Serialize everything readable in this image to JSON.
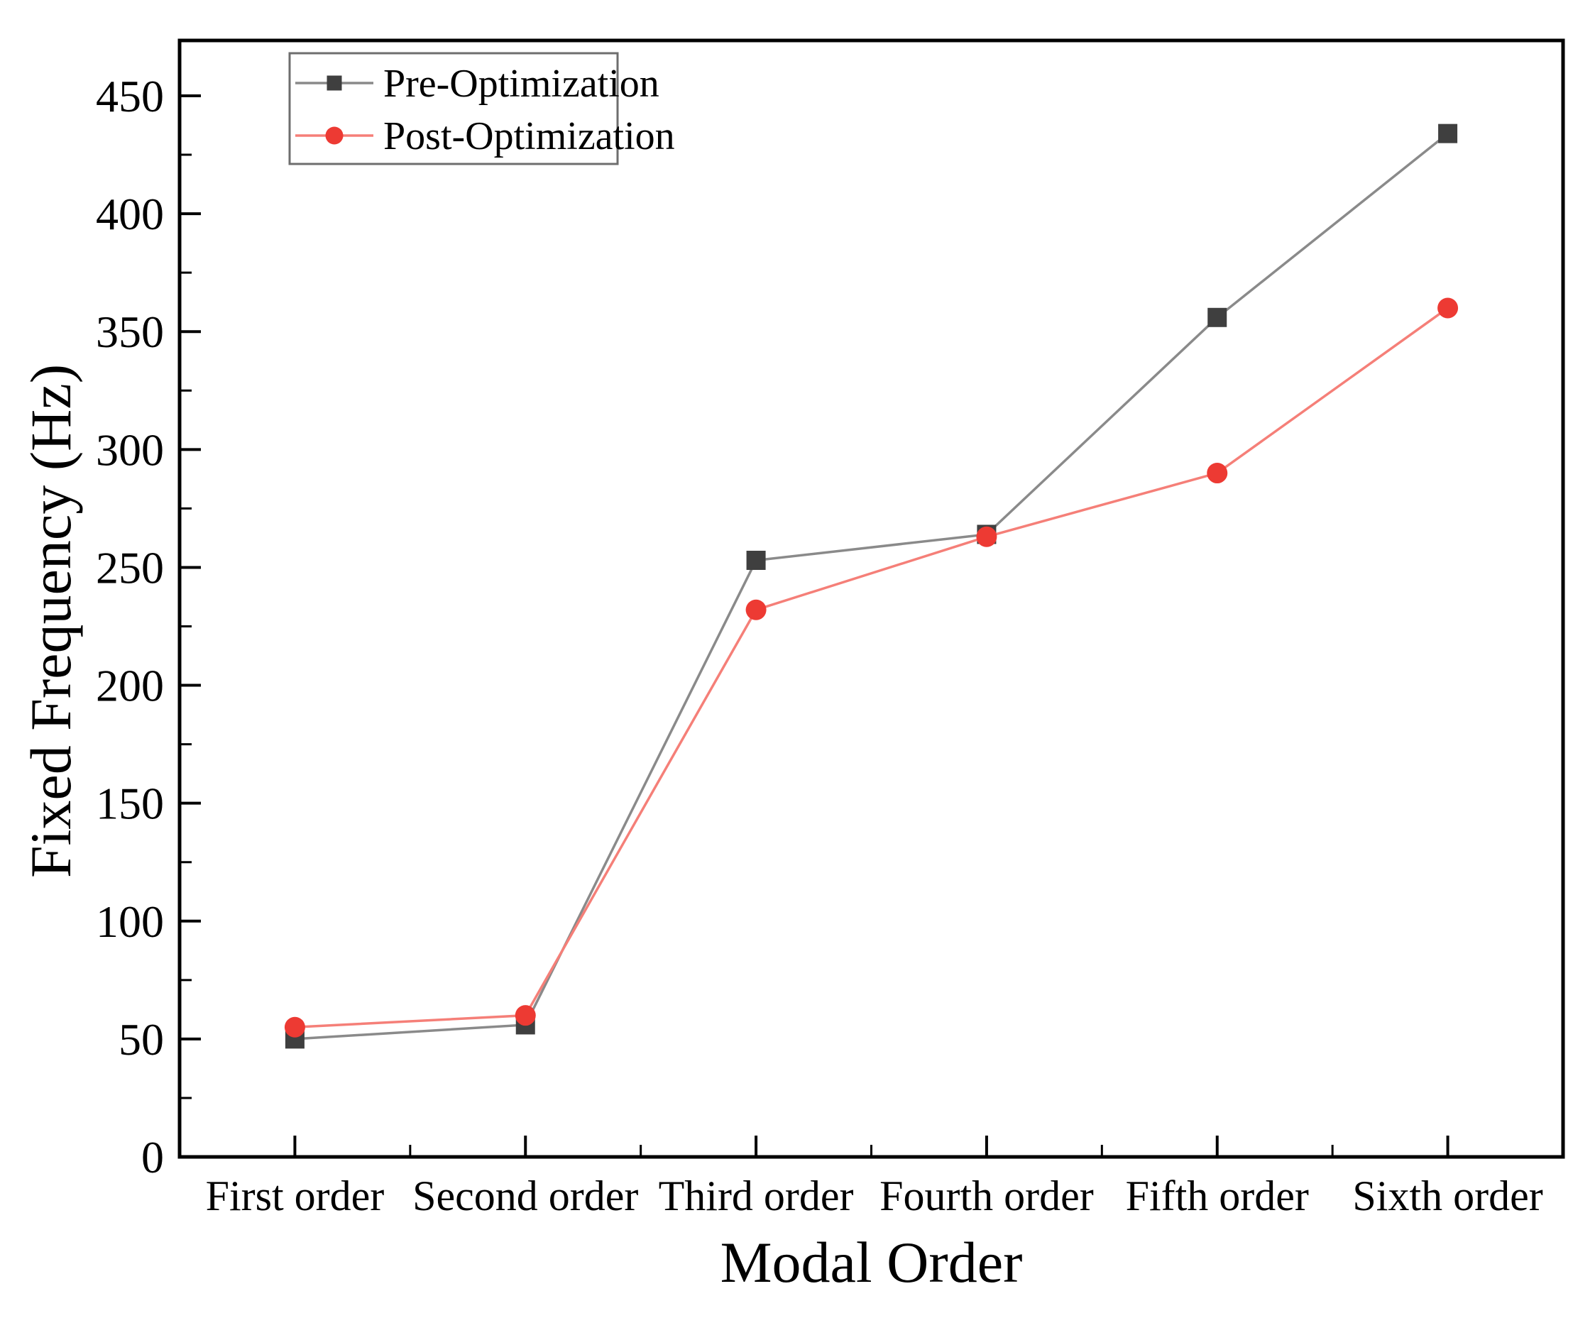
{
  "figure": {
    "background": "#ffffff",
    "axis_color": "#000000",
    "legend_border_color": "#6e6e6e"
  },
  "chart_data": {
    "type": "line",
    "title": "",
    "xlabel": "Modal Order",
    "ylabel": "Fixed Frequency (Hz)",
    "categories": [
      "First order",
      "Second order",
      "Third order",
      "Fourth order",
      "Fifth order",
      "Sixth order"
    ],
    "series": [
      {
        "name": "Pre-Optimization",
        "marker": "square",
        "marker_color": "#3f3f3f",
        "line_color": "#8a8a8a",
        "values": [
          50,
          56,
          253,
          264,
          356,
          434
        ]
      },
      {
        "name": "Post-Optimization",
        "marker": "circle",
        "marker_color": "#ed3a33",
        "line_color": "#f57f78",
        "values": [
          55,
          60,
          232,
          263,
          290,
          360
        ]
      }
    ],
    "ylim": [
      0,
      473
    ],
    "yticks": [
      0,
      50,
      100,
      150,
      200,
      250,
      300,
      350,
      400,
      450
    ],
    "y_minor_step": 25,
    "x_minor_between_categories": true,
    "grid": false,
    "legend_position": "top-left"
  }
}
